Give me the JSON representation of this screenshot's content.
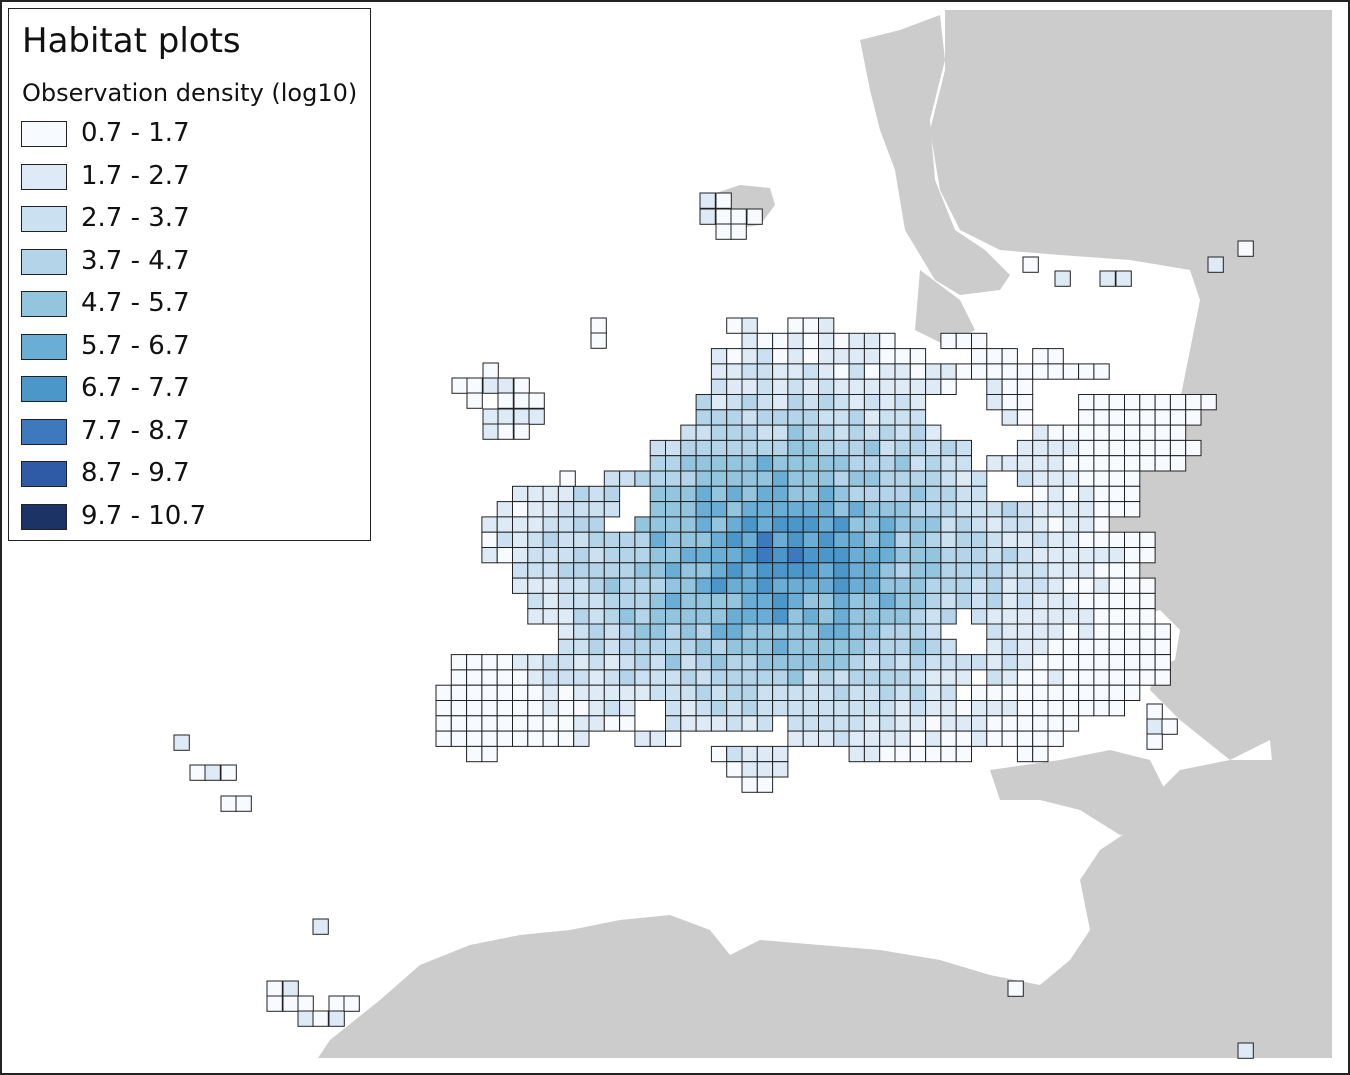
{
  "legend": {
    "title": "Habitat plots",
    "subtitle": "Observation density (log10)",
    "classes": [
      {
        "label": "0.7 - 1.7",
        "color": "#f7fbff"
      },
      {
        "label": "1.7 - 2.7",
        "color": "#deebf7"
      },
      {
        "label": "2.7 - 3.7",
        "color": "#cbe0f1"
      },
      {
        "label": "3.7 - 4.7",
        "color": "#b4d4e9"
      },
      {
        "label": "4.7 - 5.7",
        "color": "#93c5de"
      },
      {
        "label": "5.7 - 6.7",
        "color": "#6aaed6"
      },
      {
        "label": "6.7 - 7.7",
        "color": "#4c97c9"
      },
      {
        "label": "7.7 - 8.7",
        "color": "#3c79bf"
      },
      {
        "label": "8.7 - 9.7",
        "color": "#2f5aa6"
      },
      {
        "label": "9.7 - 10.7",
        "color": "#1c3366"
      }
    ]
  },
  "colors": {
    "land_background": "#cccccc",
    "sea": "#ffffff",
    "cell_border": "#222222"
  }
}
